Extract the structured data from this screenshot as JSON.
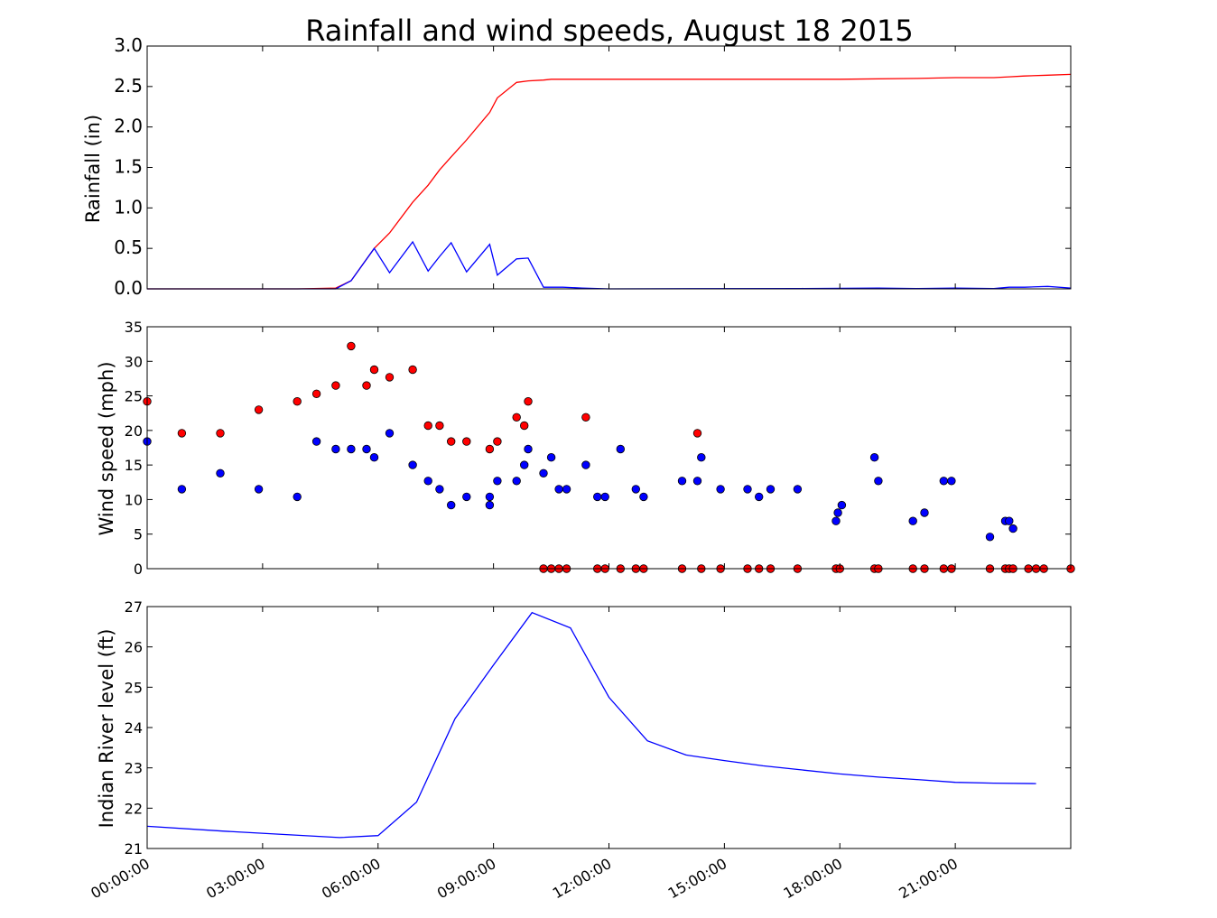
{
  "chart_data": [
    {
      "type": "line",
      "title": "Rainfall and wind speeds, August 18 2015",
      "xlabel": "",
      "ylabel": "Rainfall (in)",
      "xlim": [
        0,
        24
      ],
      "ylim": [
        0,
        3.0
      ],
      "yticks": [
        "0.0",
        "0.5",
        "1.0",
        "1.5",
        "2.0",
        "2.5",
        "3.0"
      ],
      "grid": false,
      "series": [
        {
          "color": "#ff0000",
          "x": [
            0,
            3.9,
            4.9,
            5.3,
            5.9,
            6.3,
            6.9,
            7.3,
            7.6,
            7.9,
            8.3,
            8.9,
            9.1,
            9.6,
            9.9,
            10.3,
            10.5,
            12,
            15,
            18,
            20,
            21,
            22,
            22.4,
            22.8,
            23.4,
            24
          ],
          "y": [
            0,
            0,
            0.01,
            0.1,
            0.5,
            0.69,
            1.07,
            1.28,
            1.47,
            1.63,
            1.84,
            2.18,
            2.36,
            2.55,
            2.57,
            2.58,
            2.59,
            2.59,
            2.59,
            2.59,
            2.6,
            2.61,
            2.61,
            2.62,
            2.63,
            2.64,
            2.65
          ]
        },
        {
          "color": "#0000ff",
          "x": [
            0,
            3.9,
            4.9,
            5.3,
            5.9,
            6.3,
            6.9,
            7.3,
            7.6,
            7.9,
            8.3,
            8.9,
            9.1,
            9.6,
            9.9,
            10.3,
            10.8,
            11.3,
            12,
            17,
            19,
            20,
            21,
            22,
            22.4,
            22.8,
            23.4,
            24
          ],
          "y": [
            0,
            0,
            0,
            0.1,
            0.5,
            0.2,
            0.58,
            0.22,
            0.4,
            0.57,
            0.21,
            0.55,
            0.17,
            0.37,
            0.38,
            0.02,
            0.02,
            0.01,
            0,
            0.005,
            0.01,
            0.005,
            0.01,
            0.005,
            0.02,
            0.02,
            0.03,
            0.01
          ]
        }
      ],
      "xticks_shown": false
    },
    {
      "type": "scatter",
      "xlabel": "",
      "ylabel": "Wind speed (mph)",
      "xlim": [
        0,
        24
      ],
      "ylim": [
        0,
        35
      ],
      "yticks": [
        "0",
        "5",
        "10",
        "15",
        "20",
        "25",
        "30",
        "35"
      ],
      "grid": false,
      "series": [
        {
          "color": "#ff0000",
          "x": [
            0,
            0.9,
            1.9,
            2.9,
            3.9,
            4.4,
            4.9,
            5.3,
            5.7,
            5.9,
            6.3,
            6.9,
            7.3,
            7.6,
            7.9,
            8.3,
            8.9,
            9.1,
            9.6,
            9.8,
            9.9,
            10.3,
            10.5,
            10.7,
            10.9,
            11.4,
            11.7,
            11.9,
            12.3,
            12.7,
            12.9,
            13.9,
            14.3,
            14.4,
            14.9,
            15.6,
            15.9,
            16.2,
            16.9,
            17.9,
            18,
            18.9,
            19,
            19.9,
            20.2,
            20.7,
            20.9,
            21.9,
            22.3,
            22.4,
            22.5,
            22.9,
            23.1,
            23.3,
            24
          ],
          "y": [
            24.2,
            19.6,
            19.6,
            23,
            24.2,
            25.3,
            26.5,
            32.2,
            26.5,
            28.8,
            27.7,
            28.8,
            20.7,
            20.7,
            18.4,
            18.4,
            17.3,
            18.4,
            21.9,
            20.7,
            24.2,
            0,
            0,
            0,
            0,
            21.9,
            0,
            0,
            0,
            0,
            0,
            0,
            19.6,
            0,
            0,
            0,
            0,
            0,
            0,
            0,
            0,
            0,
            0,
            0,
            0,
            0,
            0,
            0,
            0,
            0,
            0,
            0,
            0,
            0,
            0
          ]
        },
        {
          "color": "#0000ff",
          "x": [
            0,
            0.9,
            1.9,
            2.9,
            3.9,
            4.4,
            4.9,
            5.3,
            5.7,
            5.9,
            6.3,
            6.9,
            7.3,
            7.6,
            7.9,
            8.3,
            8.9,
            8.9,
            9.1,
            9.6,
            9.8,
            9.9,
            10.3,
            10.5,
            10.7,
            10.9,
            11.4,
            11.7,
            11.9,
            12.3,
            12.7,
            12.9,
            13.9,
            14.3,
            14.4,
            14.9,
            15.6,
            15.9,
            16.2,
            16.9,
            17.9,
            17.95,
            18.05,
            18.9,
            19,
            19.9,
            20.2,
            20.7,
            20.9,
            21.9,
            22.3,
            22.4,
            22.5
          ],
          "y": [
            18.4,
            11.5,
            13.8,
            11.5,
            10.4,
            18.4,
            17.3,
            17.3,
            17.3,
            16.1,
            19.6,
            15,
            12.7,
            11.5,
            9.2,
            10.4,
            9.2,
            10.4,
            12.7,
            12.7,
            15,
            17.3,
            13.8,
            16.1,
            11.5,
            11.5,
            15,
            10.4,
            10.4,
            17.3,
            11.5,
            10.4,
            12.7,
            12.7,
            16.1,
            11.5,
            11.5,
            10.4,
            11.5,
            11.5,
            6.9,
            8.1,
            9.2,
            16.1,
            12.7,
            6.9,
            8.1,
            12.7,
            12.7,
            4.6,
            6.9,
            6.9,
            5.8
          ]
        }
      ],
      "xticks_shown": false
    },
    {
      "type": "line",
      "xlabel": "",
      "ylabel": "Indian River level (ft)",
      "xlim": [
        0,
        24
      ],
      "ylim": [
        21,
        27
      ],
      "yticks": [
        "21",
        "22",
        "23",
        "24",
        "25",
        "26",
        "27"
      ],
      "grid": false,
      "series": [
        {
          "color": "#0000ff",
          "x": [
            0,
            2,
            5,
            6,
            7,
            8,
            9,
            10,
            11,
            12,
            13,
            14,
            15,
            16,
            17,
            18,
            19,
            20,
            21,
            22,
            23.1
          ],
          "y": [
            21.55,
            21.43,
            21.27,
            21.32,
            22.15,
            24.22,
            25.55,
            26.85,
            26.47,
            24.75,
            23.67,
            23.32,
            23.18,
            23.05,
            22.95,
            22.85,
            22.77,
            22.71,
            22.64,
            22.62,
            22.61
          ]
        }
      ],
      "xticks": [
        "00:00:00",
        "03:00:00",
        "06:00:00",
        "09:00:00",
        "12:00:00",
        "15:00:00",
        "18:00:00",
        "21:00:00"
      ]
    }
  ]
}
